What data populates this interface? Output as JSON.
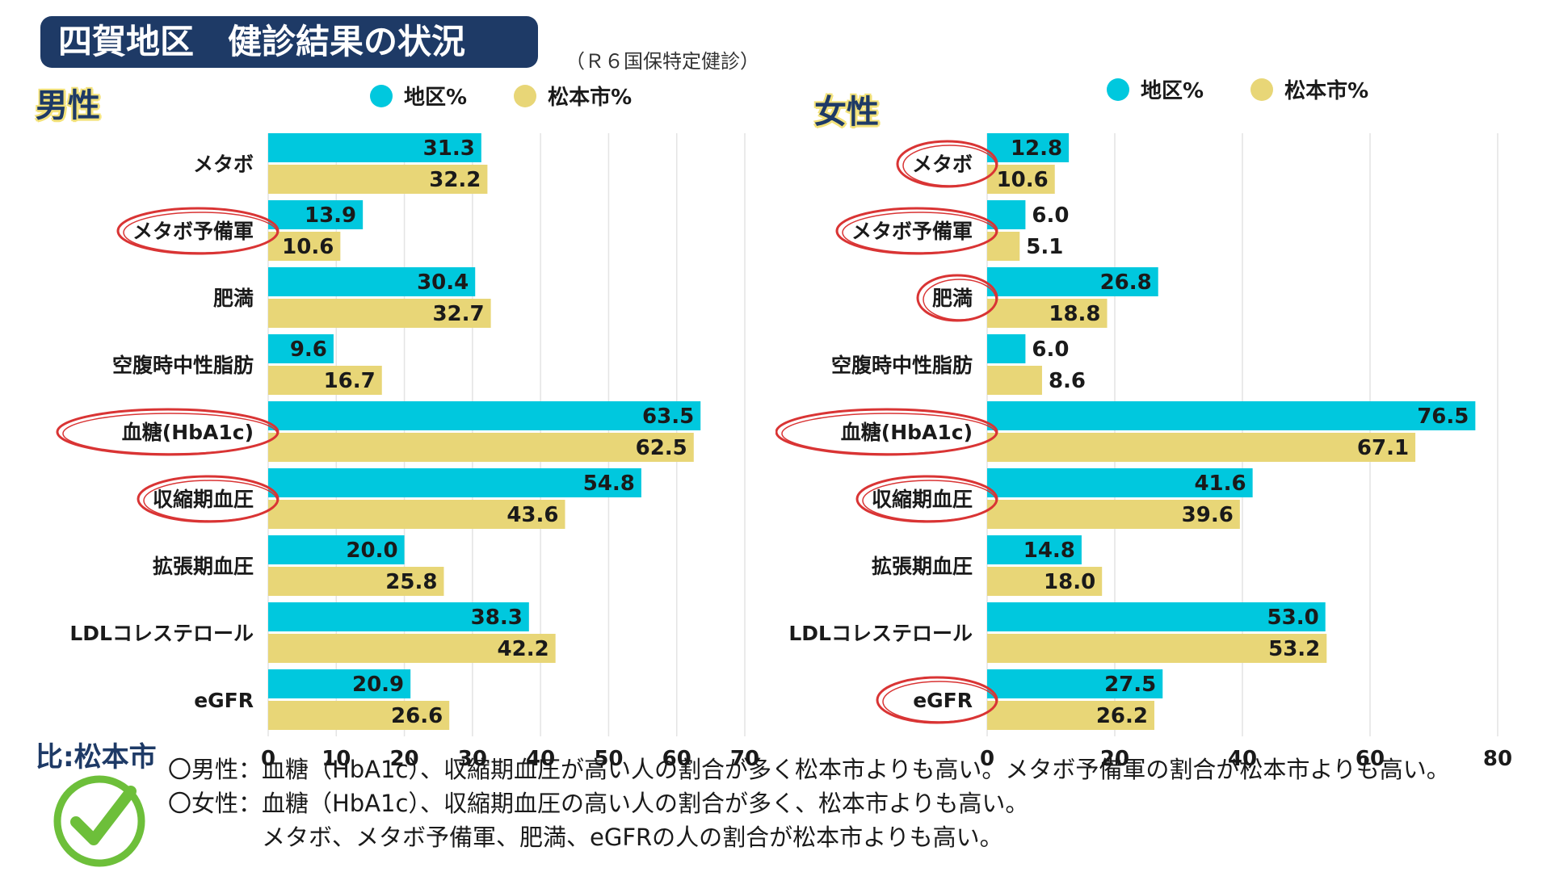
{
  "header": {
    "title": "四賀地区　健診結果の状況",
    "subtitle": "（Ｒ６国保特定健診）"
  },
  "colors": {
    "district": "#00c8de",
    "city": "#e8d677",
    "circle": "#d93434",
    "navy": "#1e3a66",
    "check": "#6dbf3a"
  },
  "chart_data": [
    {
      "type": "bar",
      "orientation": "horizontal",
      "panel_label": "男性",
      "categories": [
        "メタボ",
        "メタボ予備軍",
        "肥満",
        "空腹時中性脂肪",
        "血糖(HbA1c)",
        "収縮期血圧",
        "拡張期血圧",
        "LDLコレステロール",
        "eGFR"
      ],
      "highlighted": [
        "メタボ予備軍",
        "血糖(HbA1c)",
        "収縮期血圧"
      ],
      "series": [
        {
          "name": "地区%",
          "values": [
            31.3,
            13.9,
            30.4,
            9.6,
            63.5,
            54.8,
            20.0,
            38.3,
            20.9
          ]
        },
        {
          "name": "松本市%",
          "values": [
            32.2,
            10.6,
            32.7,
            16.7,
            62.5,
            43.6,
            25.8,
            42.2,
            26.6
          ]
        }
      ],
      "xlim": [
        0,
        70
      ],
      "xticks": [
        0,
        10,
        20,
        30,
        40,
        50,
        60,
        70
      ],
      "grid": true,
      "legend": "top"
    },
    {
      "type": "bar",
      "orientation": "horizontal",
      "panel_label": "女性",
      "categories": [
        "メタボ",
        "メタボ予備軍",
        "肥満",
        "空腹時中性脂肪",
        "血糖(HbA1c)",
        "収縮期血圧",
        "拡張期血圧",
        "LDLコレステロール",
        "eGFR"
      ],
      "highlighted": [
        "メタボ",
        "メタボ予備軍",
        "肥満",
        "血糖(HbA1c)",
        "収縮期血圧",
        "eGFR"
      ],
      "series": [
        {
          "name": "地区%",
          "values": [
            12.8,
            6.0,
            26.8,
            6.0,
            76.5,
            41.6,
            14.8,
            53.0,
            27.5
          ]
        },
        {
          "name": "松本市%",
          "values": [
            10.6,
            5.1,
            18.8,
            8.6,
            67.1,
            39.6,
            18.0,
            53.2,
            26.2
          ]
        }
      ],
      "xlim": [
        0,
        80
      ],
      "xticks": [
        0,
        20,
        40,
        60,
        80
      ],
      "grid": true,
      "legend": "top"
    }
  ],
  "footer": {
    "compare_label": "比:松本市",
    "notes": [
      "〇男性：血糖（HbA1c）、収縮期血圧が高い人の割合が多く松本市よりも高い。メタボ予備軍の割合が松本市よりも高い。",
      "〇女性：血糖（HbA1c）、収縮期血圧の高い人の割合が多く、松本市よりも高い。",
      "　　　　メタボ、メタボ予備軍、肥満、eGFRの人の割合が松本市よりも高い。"
    ]
  }
}
